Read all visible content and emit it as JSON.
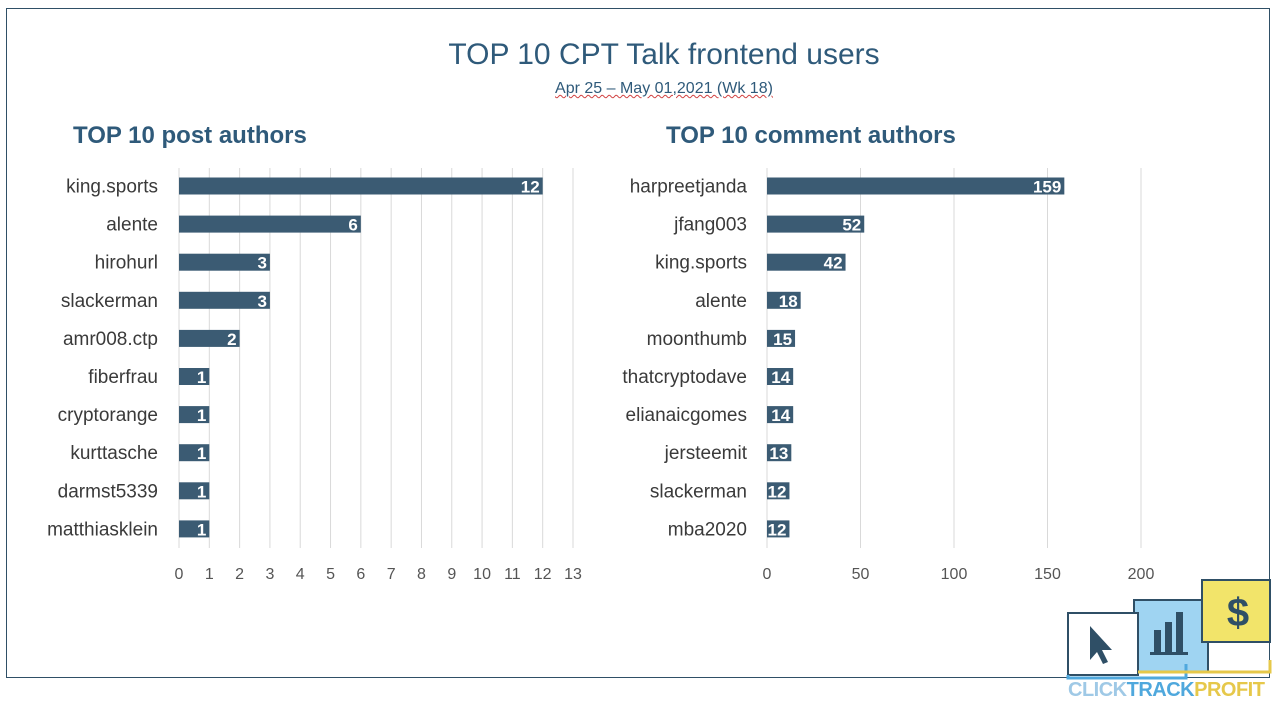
{
  "title": "TOP 10 CPT Talk frontend users",
  "subtitle": "Apr 25 – May 01,2021 (Wk 18)",
  "logo_words": [
    "CLICK",
    "TRACK",
    "PROFIT"
  ],
  "colors": {
    "bar": "#3b5b73",
    "title": "#2f5a7a",
    "grid": "#d9d9d9"
  },
  "chart_data": [
    {
      "type": "bar",
      "orientation": "horizontal",
      "title": "TOP 10 post authors",
      "categories": [
        "king.sports",
        "alente",
        "hirohurl",
        "slackerman",
        "amr008.ctp",
        "fiberfrau",
        "cryptorange",
        "kurttasche",
        "darmst5339",
        "matthiasklein"
      ],
      "values": [
        12,
        6,
        3,
        3,
        2,
        1,
        1,
        1,
        1,
        1
      ],
      "xlim": [
        0,
        13
      ],
      "xticks": [
        0,
        1,
        2,
        3,
        4,
        5,
        6,
        7,
        8,
        9,
        10,
        11,
        12,
        13
      ],
      "grid": true,
      "data_labels": true
    },
    {
      "type": "bar",
      "orientation": "horizontal",
      "title": "TOP 10 comment authors",
      "categories": [
        "harpreetjanda",
        "jfang003",
        "king.sports",
        "alente",
        "moonthumb",
        "thatcryptodave",
        "elianaicgomes",
        "jersteemit",
        "slackerman",
        "mba2020"
      ],
      "values": [
        159,
        52,
        42,
        18,
        15,
        14,
        14,
        13,
        12,
        12
      ],
      "xlim": [
        0,
        200
      ],
      "xticks": [
        0,
        50,
        100,
        150,
        200
      ],
      "grid": true,
      "data_labels": true
    }
  ]
}
